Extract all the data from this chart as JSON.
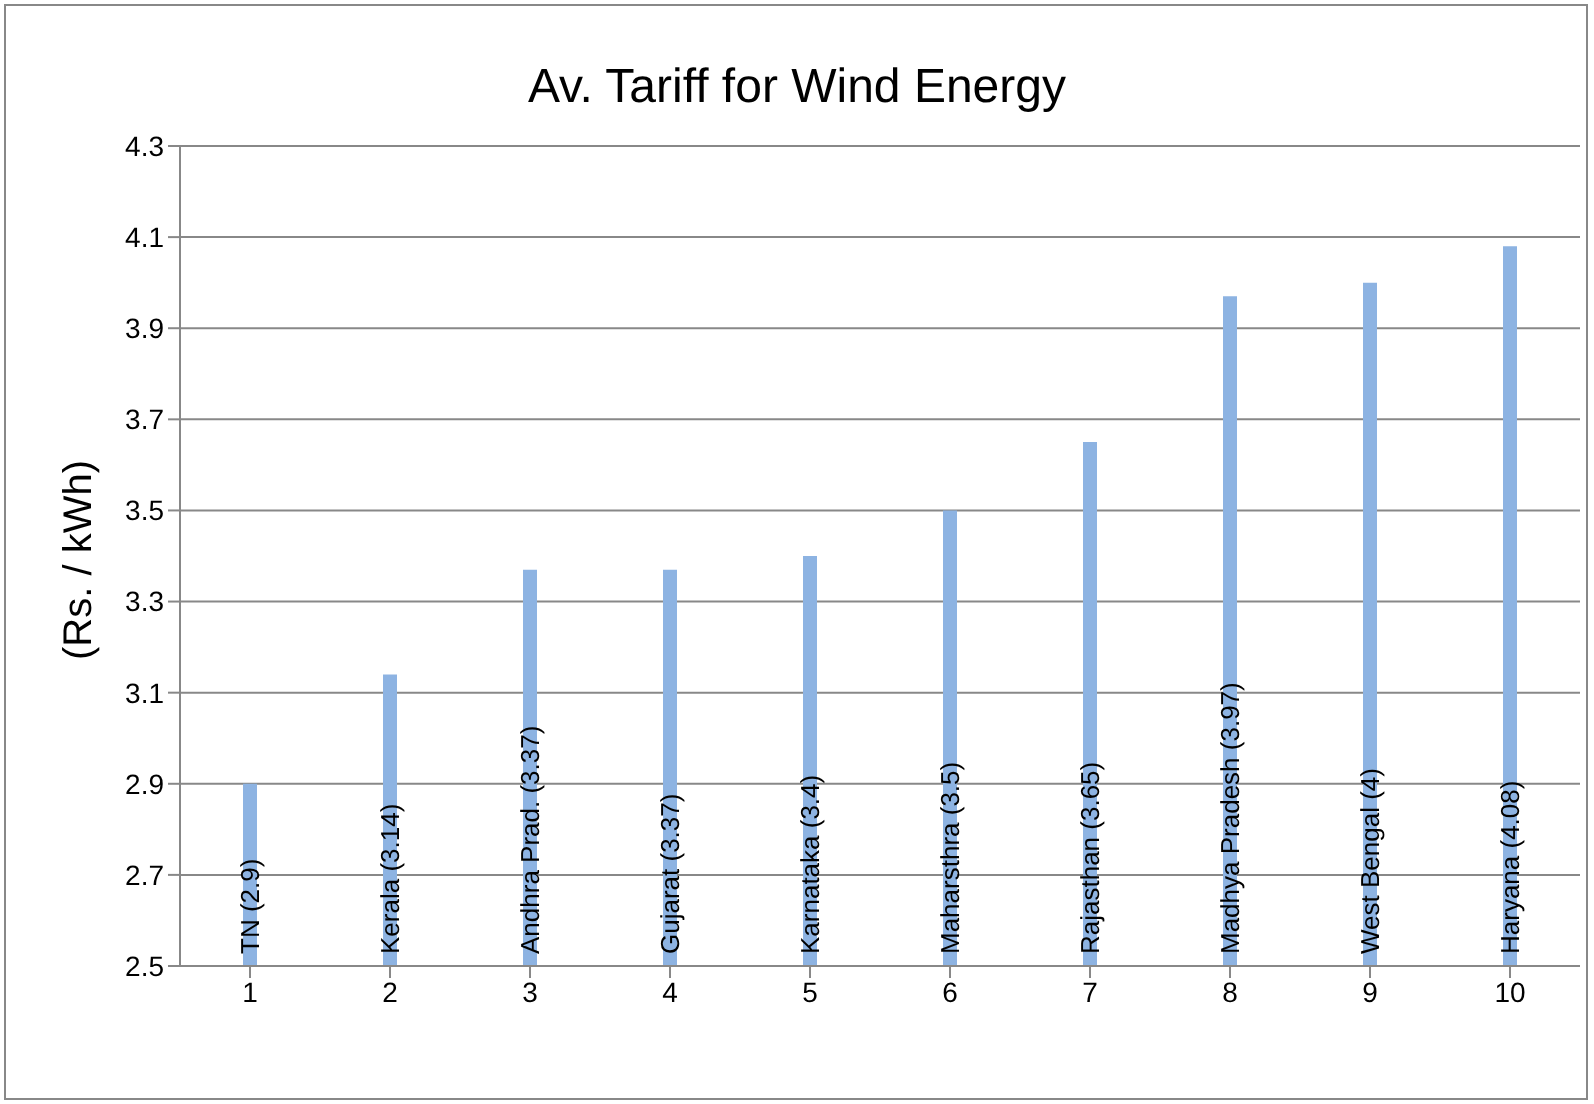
{
  "chart_data": {
    "type": "bar",
    "title": "Av. Tariff for Wind Energy",
    "ylabel": "(Rs. / kWh)",
    "categories": [
      "1",
      "2",
      "3",
      "4",
      "5",
      "6",
      "7",
      "8",
      "9",
      "10"
    ],
    "values": [
      2.9,
      3.14,
      3.37,
      3.37,
      3.4,
      3.5,
      3.65,
      3.97,
      4,
      4.08
    ],
    "value_labels": [
      "TN (2.9)",
      "Kerala (3.14)",
      "Andhra Prad. (3.37)",
      "Gujarat (3.37)",
      "Karnataka (3.4)",
      "Maharsthra (3.5)",
      "Rajasthan (3.65)",
      "Madhya Pradesh (3.97)",
      "West Bengal (4)",
      "Haryana (4.08)"
    ],
    "color": "#8db3e2",
    "ylim": [
      2.5,
      4.3
    ],
    "yticks": [
      2.5,
      2.7,
      2.9,
      3.1,
      3.3,
      3.5,
      3.7,
      3.9,
      4.1,
      4.3
    ],
    "grid": "y",
    "legend": false
  }
}
